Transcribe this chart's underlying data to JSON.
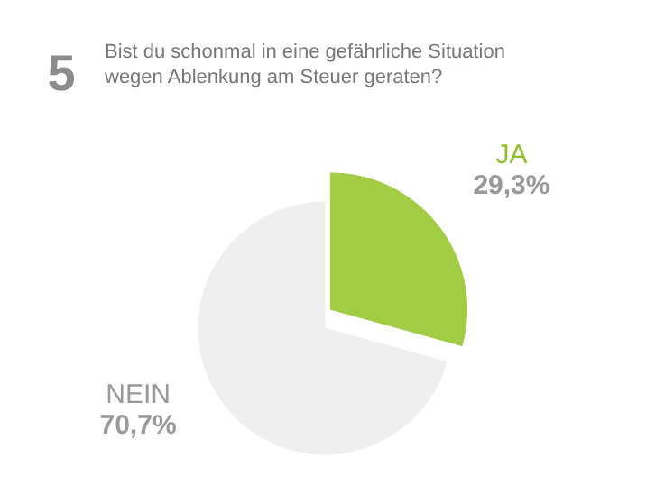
{
  "chart_data": {
    "type": "pie",
    "title": "Bist du schonmal in eine gefährliche Situation wegen Ablenkung am Steuer geraten?",
    "annotations": [
      "5"
    ],
    "categories": [
      "JA",
      "NEIN"
    ],
    "values": [
      29.3,
      70.7
    ],
    "colors": [
      "#a3cc45",
      "#efefef"
    ],
    "value_labels": [
      "29,3%",
      "70,7%"
    ]
  }
}
